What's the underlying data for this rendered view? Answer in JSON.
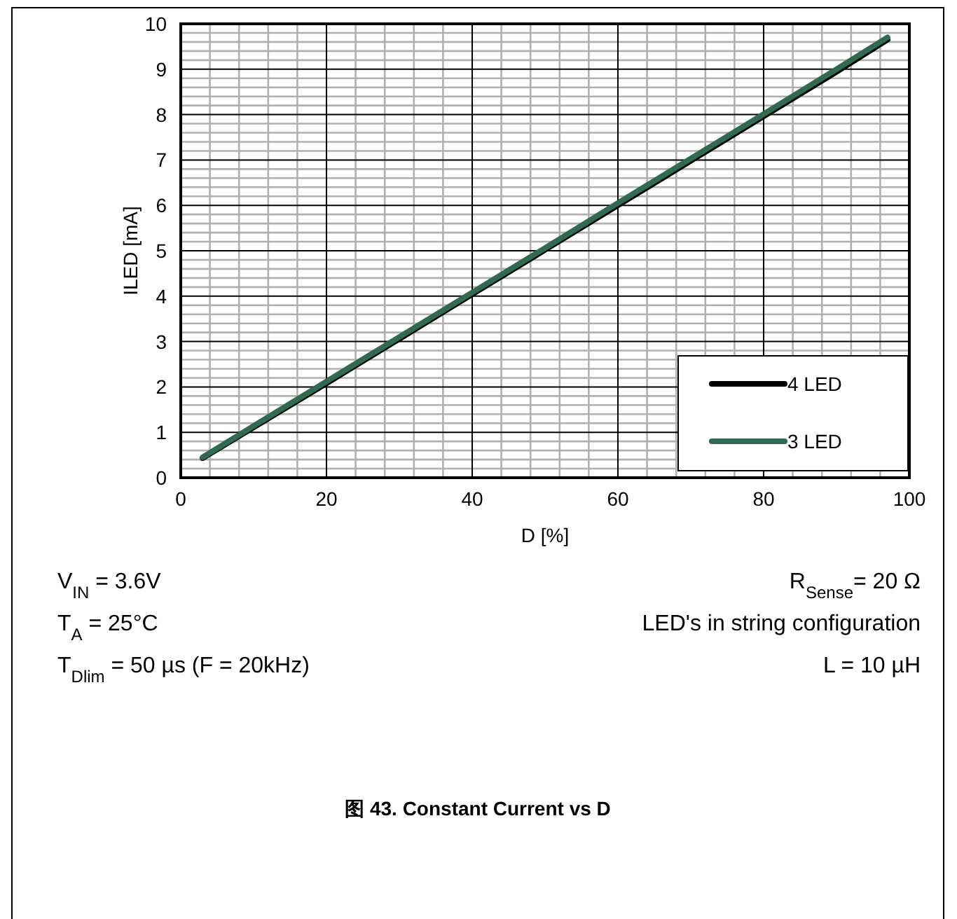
{
  "chart_data": {
    "type": "line",
    "title": "图 43. Constant Current vs D",
    "xlabel": "D [%]",
    "ylabel": "ILED [mA]",
    "x": [
      3,
      10,
      20,
      30,
      40,
      50,
      60,
      70,
      80,
      90,
      97
    ],
    "series": [
      {
        "name": "4 LED",
        "color": "#000000",
        "values": [
          0.43,
          1.11,
          2.08,
          3.06,
          4.04,
          5.02,
          6.0,
          6.98,
          7.96,
          8.94,
          9.65
        ]
      },
      {
        "name": "3 LED",
        "color": "#2e6b4f",
        "values": [
          0.45,
          1.14,
          2.12,
          3.1,
          4.08,
          5.06,
          6.05,
          7.03,
          8.01,
          9.0,
          9.7
        ]
      }
    ],
    "xlim": [
      0,
      100
    ],
    "ylim": [
      0,
      10
    ],
    "xticks": [
      0,
      20,
      40,
      60,
      80,
      100
    ],
    "yticks": [
      0,
      1,
      2,
      3,
      4,
      5,
      6,
      7,
      8,
      9,
      10
    ],
    "grid": true,
    "legend": "bottom right",
    "marker": "none",
    "line_style": "solid",
    "annotations": [
      "V$_{IN}$ = 3.6V",
      "T$_{A}$ = 25°C",
      "T$_{Dlim}$ = 50 µs (F = 20kHz)",
      "R$_{Sense}$= 20 Ω",
      "LED's in string configuration",
      "L = 10 µH"
    ]
  }
}
